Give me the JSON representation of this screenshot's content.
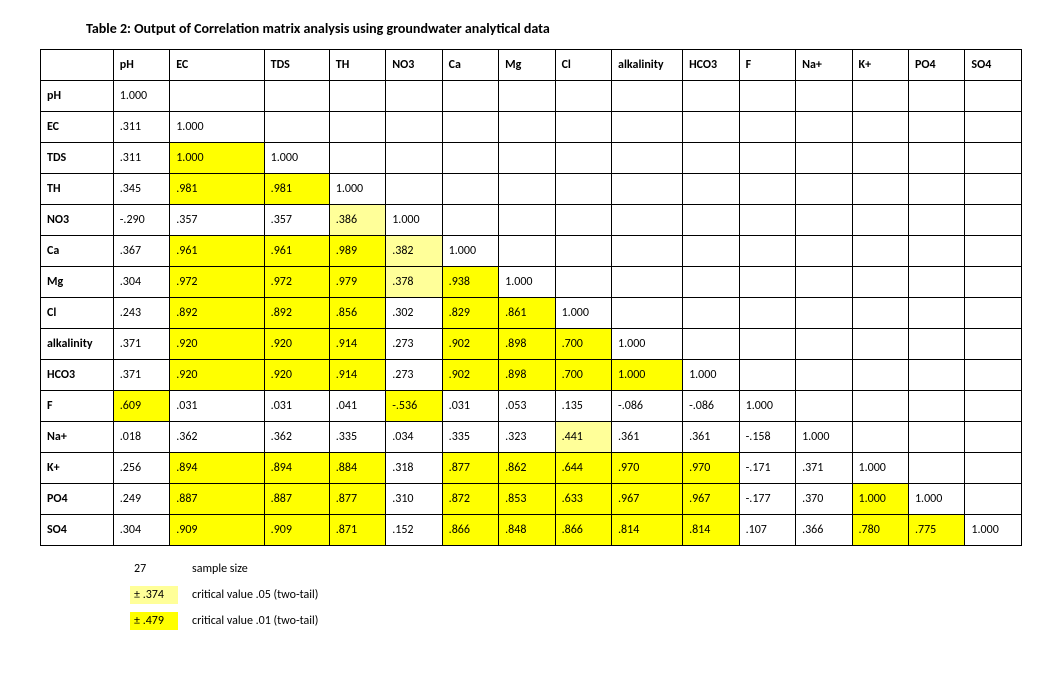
{
  "title": "Table 2: Output of Correlation matrix analysis using groundwater analytical data",
  "highlight_colors": {
    "p01": "#ffff00",
    "p05": "#ffff99"
  },
  "columns": [
    "",
    "pH",
    "EC",
    "TDS",
    "TH",
    "NO3",
    "Ca",
    "Mg",
    "Cl",
    "alkalinity",
    "HCO3",
    "F",
    "Na+",
    "K+",
    "PO4",
    "SO4"
  ],
  "rows": [
    {
      "label": "pH",
      "cells": [
        "1.000",
        "",
        "",
        "",
        "",
        "",
        "",
        "",
        "",
        "",
        "",
        "",
        "",
        "",
        ""
      ],
      "hl": [
        "",
        "",
        "",
        "",
        "",
        "",
        "",
        "",
        "",
        "",
        "",
        "",
        "",
        "",
        ""
      ]
    },
    {
      "label": "EC",
      "cells": [
        ".311",
        "1.000",
        "",
        "",
        "",
        "",
        "",
        "",
        "",
        "",
        "",
        "",
        "",
        "",
        ""
      ],
      "hl": [
        "",
        "",
        "",
        "",
        "",
        "",
        "",
        "",
        "",
        "",
        "",
        "",
        "",
        "",
        ""
      ]
    },
    {
      "label": "TDS",
      "cells": [
        ".311",
        "1.000",
        "1.000",
        "",
        "",
        "",
        "",
        "",
        "",
        "",
        "",
        "",
        "",
        "",
        ""
      ],
      "hl": [
        "",
        "p01",
        "",
        "",
        "",
        "",
        "",
        "",
        "",
        "",
        "",
        "",
        "",
        "",
        ""
      ]
    },
    {
      "label": "TH",
      "cells": [
        ".345",
        ".981",
        ".981",
        "1.000",
        "",
        "",
        "",
        "",
        "",
        "",
        "",
        "",
        "",
        "",
        ""
      ],
      "hl": [
        "",
        "p01",
        "p01",
        "",
        "",
        "",
        "",
        "",
        "",
        "",
        "",
        "",
        "",
        "",
        ""
      ]
    },
    {
      "label": "NO3",
      "cells": [
        "-.290",
        ".357",
        ".357",
        ".386",
        "1.000",
        "",
        "",
        "",
        "",
        "",
        "",
        "",
        "",
        "",
        ""
      ],
      "hl": [
        "",
        "",
        "",
        "p05",
        "",
        "",
        "",
        "",
        "",
        "",
        "",
        "",
        "",
        "",
        ""
      ]
    },
    {
      "label": "Ca",
      "cells": [
        ".367",
        ".961",
        ".961",
        ".989",
        ".382",
        "1.000",
        "",
        "",
        "",
        "",
        "",
        "",
        "",
        "",
        ""
      ],
      "hl": [
        "",
        "p01",
        "p01",
        "p01",
        "p05",
        "",
        "",
        "",
        "",
        "",
        "",
        "",
        "",
        "",
        ""
      ]
    },
    {
      "label": "Mg",
      "cells": [
        ".304",
        ".972",
        ".972",
        ".979",
        ".378",
        ".938",
        "1.000",
        "",
        "",
        "",
        "",
        "",
        "",
        "",
        ""
      ],
      "hl": [
        "",
        "p01",
        "p01",
        "p01",
        "p05",
        "p01",
        "",
        "",
        "",
        "",
        "",
        "",
        "",
        "",
        ""
      ]
    },
    {
      "label": "Cl",
      "cells": [
        ".243",
        ".892",
        ".892",
        ".856",
        ".302",
        ".829",
        ".861",
        "1.000",
        "",
        "",
        "",
        "",
        "",
        "",
        ""
      ],
      "hl": [
        "",
        "p01",
        "p01",
        "p01",
        "",
        "p01",
        "p01",
        "",
        "",
        "",
        "",
        "",
        "",
        "",
        ""
      ]
    },
    {
      "label": "alkalinity",
      "cells": [
        ".371",
        ".920",
        ".920",
        ".914",
        ".273",
        ".902",
        ".898",
        ".700",
        "1.000",
        "",
        "",
        "",
        "",
        "",
        ""
      ],
      "hl": [
        "",
        "p01",
        "p01",
        "p01",
        "",
        "p01",
        "p01",
        "p01",
        "",
        "",
        "",
        "",
        "",
        "",
        ""
      ]
    },
    {
      "label": "HCO3",
      "cells": [
        ".371",
        ".920",
        ".920",
        ".914",
        ".273",
        ".902",
        ".898",
        ".700",
        "1.000",
        "1.000",
        "",
        "",
        "",
        "",
        ""
      ],
      "hl": [
        "",
        "p01",
        "p01",
        "p01",
        "",
        "p01",
        "p01",
        "p01",
        "p01",
        "",
        "",
        "",
        "",
        "",
        ""
      ]
    },
    {
      "label": "F",
      "cells": [
        ".609",
        ".031",
        ".031",
        ".041",
        "-.536",
        ".031",
        ".053",
        ".135",
        "-.086",
        "-.086",
        "1.000",
        "",
        "",
        "",
        ""
      ],
      "hl": [
        "p01",
        "",
        "",
        "",
        "p01",
        "",
        "",
        "",
        "",
        "",
        "",
        "",
        "",
        "",
        ""
      ]
    },
    {
      "label": "Na+",
      "cells": [
        ".018",
        ".362",
        ".362",
        ".335",
        ".034",
        ".335",
        ".323",
        ".441",
        ".361",
        ".361",
        "-.158",
        "1.000",
        "",
        "",
        ""
      ],
      "hl": [
        "",
        "",
        "",
        "",
        "",
        "",
        "",
        "p05",
        "",
        "",
        "",
        "",
        "",
        "",
        ""
      ]
    },
    {
      "label": "K+",
      "cells": [
        ".256",
        ".894",
        ".894",
        ".884",
        ".318",
        ".877",
        ".862",
        ".644",
        ".970",
        ".970",
        "-.171",
        ".371",
        "1.000",
        "",
        ""
      ],
      "hl": [
        "",
        "p01",
        "p01",
        "p01",
        "",
        "p01",
        "p01",
        "p01",
        "p01",
        "p01",
        "",
        "",
        "",
        "",
        ""
      ]
    },
    {
      "label": "PO4",
      "cells": [
        ".249",
        ".887",
        ".887",
        ".877",
        ".310",
        ".872",
        ".853",
        ".633",
        ".967",
        ".967",
        "-.177",
        ".370",
        "1.000",
        "1.000",
        ""
      ],
      "hl": [
        "",
        "p01",
        "p01",
        "p01",
        "",
        "p01",
        "p01",
        "p01",
        "p01",
        "p01",
        "",
        "",
        "p01",
        "",
        ""
      ]
    },
    {
      "label": "SO4",
      "cells": [
        ".304",
        ".909",
        ".909",
        ".871",
        ".152",
        ".866",
        ".848",
        ".866",
        ".814",
        ".814",
        ".107",
        ".366",
        ".780",
        ".775",
        "1.000"
      ],
      "hl": [
        "",
        "p01",
        "p01",
        "p01",
        "",
        "p01",
        "p01",
        "p01",
        "p01",
        "p01",
        "",
        "",
        "p01",
        "p01",
        ""
      ]
    }
  ],
  "legend": {
    "sample_size_value": "27",
    "sample_size_label": "sample size",
    "crit05_value": "± .374",
    "crit05_label": "critical value .05 (two-tail)",
    "crit01_value": "± .479",
    "crit01_label": "critical value .01 (two-tail)"
  }
}
